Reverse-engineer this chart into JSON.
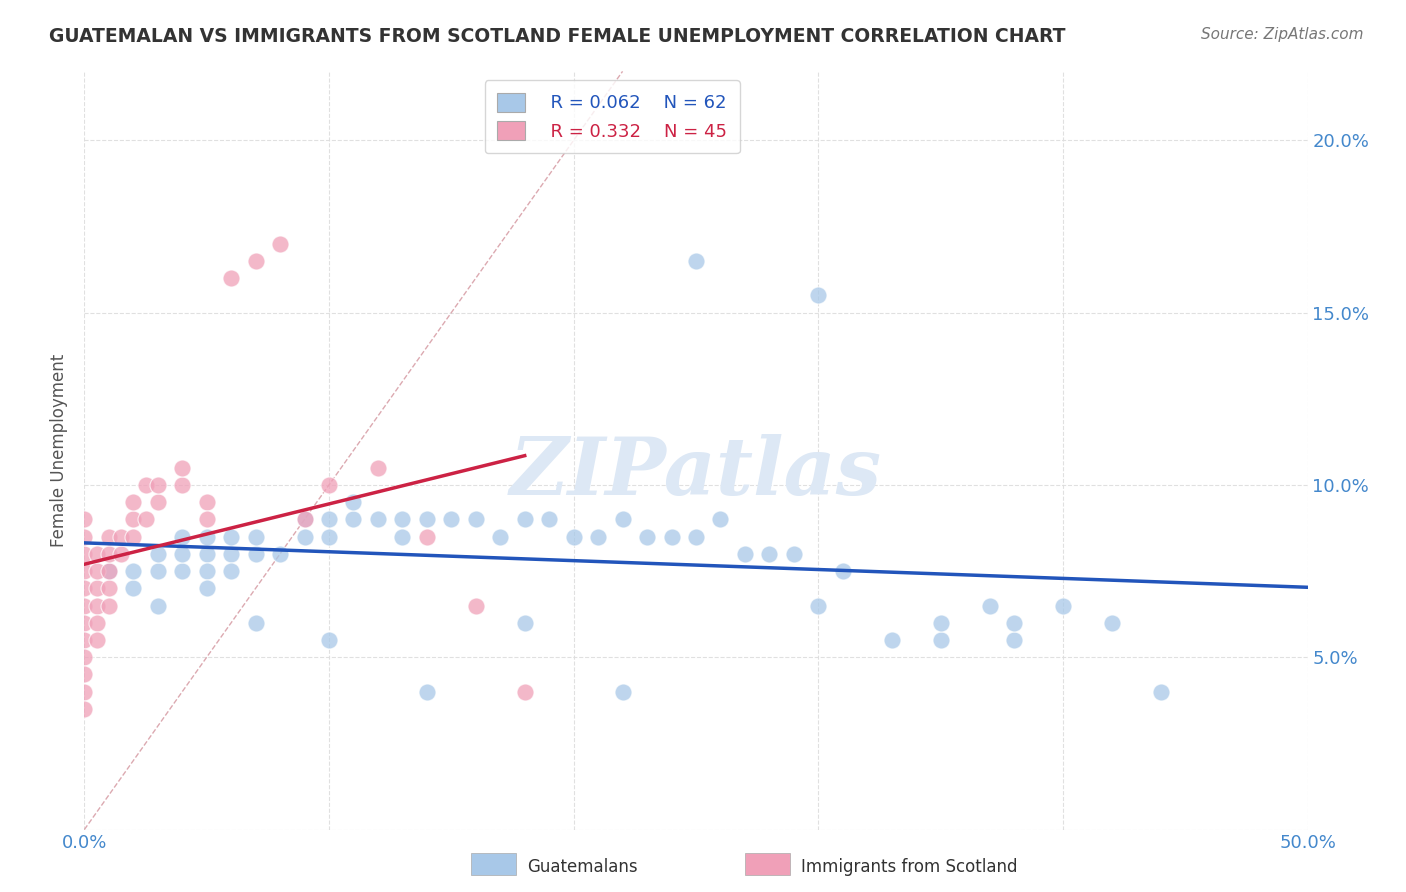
{
  "title": "GUATEMALAN VS IMMIGRANTS FROM SCOTLAND FEMALE UNEMPLOYMENT CORRELATION CHART",
  "source_text": "Source: ZipAtlas.com",
  "ylabel": "Female Unemployment",
  "xlim": [
    0,
    0.5
  ],
  "ylim": [
    0,
    0.22
  ],
  "legend_r1": "R = 0.062",
  "legend_n1": "N = 62",
  "legend_r2": "R = 0.332",
  "legend_n2": "N = 45",
  "color_guatemalan": "#a8c8e8",
  "color_scotland": "#f0a0b8",
  "color_trend_guatemalan": "#2255bb",
  "color_trend_scotland": "#cc2244",
  "color_diagonal": "#d8a0a8",
  "background_color": "#ffffff",
  "grid_color": "#dddddd",
  "title_color": "#333333",
  "axis_label_color": "#4488cc",
  "watermark": "ZIPatlas",
  "watermark_color": "#dde8f5",
  "guatemalan_x": [
    0.01,
    0.02,
    0.02,
    0.03,
    0.03,
    0.04,
    0.04,
    0.04,
    0.05,
    0.05,
    0.05,
    0.06,
    0.06,
    0.06,
    0.07,
    0.07,
    0.08,
    0.09,
    0.09,
    0.1,
    0.1,
    0.11,
    0.11,
    0.12,
    0.13,
    0.13,
    0.14,
    0.15,
    0.16,
    0.17,
    0.18,
    0.19,
    0.2,
    0.21,
    0.22,
    0.23,
    0.24,
    0.25,
    0.26,
    0.27,
    0.28,
    0.29,
    0.3,
    0.31,
    0.33,
    0.35,
    0.37,
    0.38,
    0.4,
    0.42,
    0.44,
    0.3,
    0.25,
    0.35,
    0.38,
    0.22,
    0.18,
    0.14,
    0.1,
    0.07,
    0.05,
    0.03
  ],
  "guatemalan_y": [
    0.075,
    0.07,
    0.075,
    0.075,
    0.08,
    0.075,
    0.08,
    0.085,
    0.08,
    0.075,
    0.085,
    0.08,
    0.075,
    0.085,
    0.08,
    0.085,
    0.08,
    0.085,
    0.09,
    0.09,
    0.085,
    0.09,
    0.095,
    0.09,
    0.085,
    0.09,
    0.09,
    0.09,
    0.09,
    0.085,
    0.09,
    0.09,
    0.085,
    0.085,
    0.09,
    0.085,
    0.085,
    0.085,
    0.09,
    0.08,
    0.08,
    0.08,
    0.065,
    0.075,
    0.055,
    0.055,
    0.065,
    0.055,
    0.065,
    0.06,
    0.04,
    0.155,
    0.165,
    0.06,
    0.06,
    0.04,
    0.06,
    0.04,
    0.055,
    0.06,
    0.07,
    0.065
  ],
  "scotland_x": [
    0.0,
    0.0,
    0.0,
    0.0,
    0.0,
    0.0,
    0.0,
    0.0,
    0.0,
    0.0,
    0.0,
    0.0,
    0.005,
    0.005,
    0.005,
    0.005,
    0.005,
    0.005,
    0.01,
    0.01,
    0.01,
    0.01,
    0.01,
    0.015,
    0.015,
    0.02,
    0.02,
    0.02,
    0.025,
    0.025,
    0.03,
    0.03,
    0.04,
    0.04,
    0.05,
    0.05,
    0.06,
    0.07,
    0.08,
    0.09,
    0.1,
    0.12,
    0.14,
    0.16,
    0.18
  ],
  "scotland_y": [
    0.075,
    0.07,
    0.065,
    0.06,
    0.055,
    0.05,
    0.045,
    0.04,
    0.035,
    0.08,
    0.085,
    0.09,
    0.07,
    0.065,
    0.06,
    0.055,
    0.075,
    0.08,
    0.07,
    0.065,
    0.075,
    0.08,
    0.085,
    0.08,
    0.085,
    0.085,
    0.09,
    0.095,
    0.09,
    0.1,
    0.095,
    0.1,
    0.1,
    0.105,
    0.095,
    0.09,
    0.16,
    0.165,
    0.17,
    0.09,
    0.1,
    0.105,
    0.085,
    0.065,
    0.04
  ]
}
